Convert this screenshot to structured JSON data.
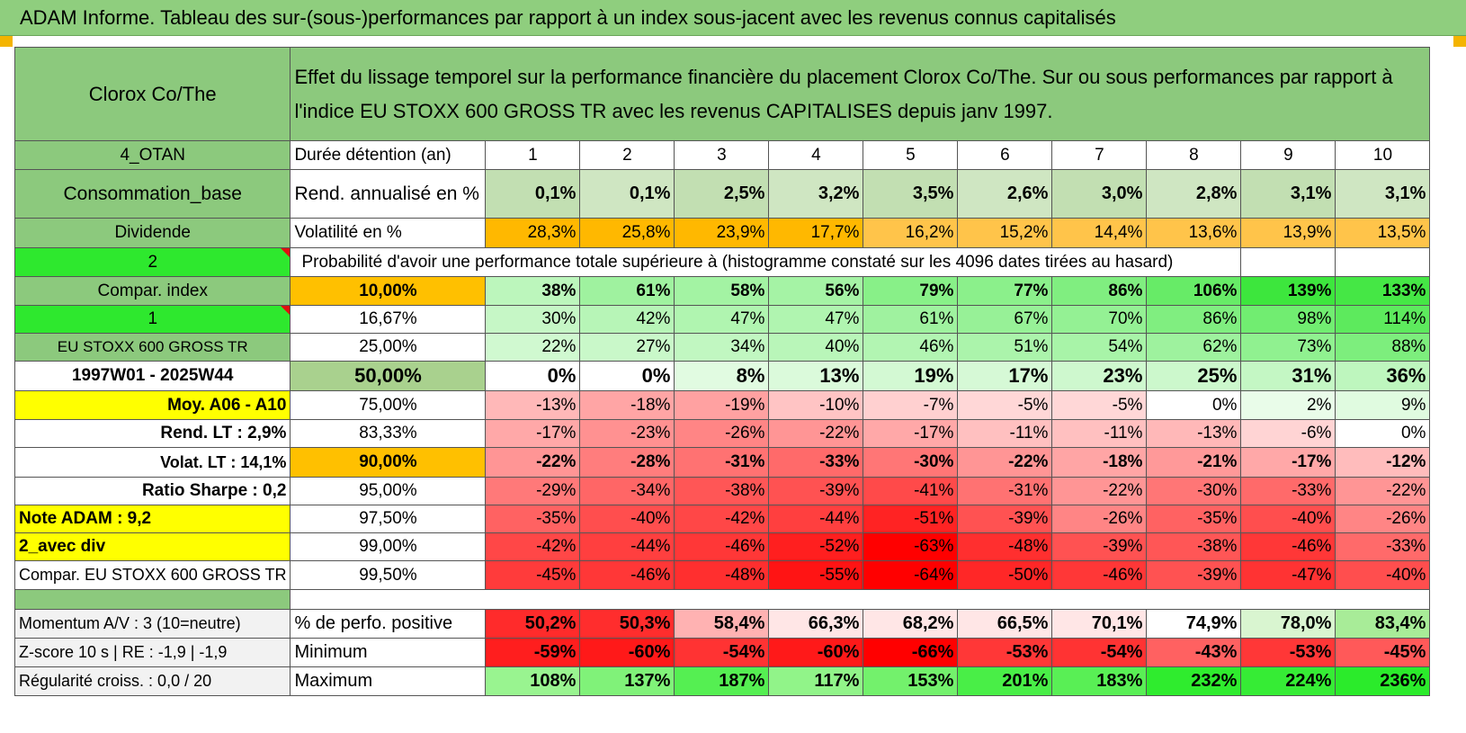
{
  "title": "ADAM Informe. Tableau des sur-(sous-)performances par rapport à un index sous-jacent avec les revenus connus capitalisés",
  "header": {
    "company": "Clorox Co/The",
    "description": "Effet du lissage temporel sur la performance financière du placement Clorox Co/The. Sur ou sous performances par rapport à l'indice EU STOXX 600 GROSS TR avec les revenus CAPITALISES depuis janv 1997."
  },
  "left_labels": [
    "4_OTAN",
    "Consommation_base",
    "Dividende",
    "2",
    "Compar. index",
    "1",
    "EU STOXX 600 GROSS TR",
    "1997W01 - 2025W44",
    "Moy. A06 - A10",
    "Rend. LT :    2,9%",
    "Volat. LT :    14,1%",
    "Ratio Sharpe :     0,2",
    "Note ADAM : 9,2",
    "2_avec div",
    "Compar. EU STOXX 600 GROSS TR"
  ],
  "durations": {
    "label": "Durée détention (an)",
    "values": [
      "1",
      "2",
      "3",
      "4",
      "5",
      "6",
      "7",
      "8",
      "9",
      "10"
    ]
  },
  "rend": {
    "label": "Rend. annualisé en %",
    "values": [
      "0,1%",
      "0,1%",
      "2,5%",
      "3,2%",
      "3,5%",
      "2,6%",
      "3,0%",
      "2,8%",
      "3,1%",
      "3,1%"
    ]
  },
  "vol": {
    "label": "Volatilité en %",
    "values": [
      "28,3%",
      "25,8%",
      "23,9%",
      "17,7%",
      "16,2%",
      "15,2%",
      "14,4%",
      "13,6%",
      "13,9%",
      "13,5%"
    ]
  },
  "prob_title": "Probabilité d'avoir une performance totale supérieure à (histogramme constaté sur les 4096 dates tirées au hasard)",
  "pct_rows": [
    {
      "p": "10,00%",
      "v": [
        "38%",
        "61%",
        "58%",
        "56%",
        "79%",
        "77%",
        "86%",
        "106%",
        "139%",
        "133%"
      ]
    },
    {
      "p": "16,67%",
      "v": [
        "30%",
        "42%",
        "47%",
        "47%",
        "61%",
        "67%",
        "70%",
        "86%",
        "98%",
        "114%"
      ]
    },
    {
      "p": "25,00%",
      "v": [
        "22%",
        "27%",
        "34%",
        "40%",
        "46%",
        "51%",
        "54%",
        "62%",
        "73%",
        "88%"
      ]
    },
    {
      "p": "50,00%",
      "v": [
        "0%",
        "0%",
        "8%",
        "13%",
        "19%",
        "17%",
        "23%",
        "25%",
        "31%",
        "36%"
      ]
    },
    {
      "p": "75,00%",
      "v": [
        "-13%",
        "-18%",
        "-19%",
        "-10%",
        "-7%",
        "-5%",
        "-5%",
        "0%",
        "2%",
        "9%"
      ]
    },
    {
      "p": "83,33%",
      "v": [
        "-17%",
        "-23%",
        "-26%",
        "-22%",
        "-17%",
        "-11%",
        "-11%",
        "-13%",
        "-6%",
        "0%"
      ]
    },
    {
      "p": "90,00%",
      "v": [
        "-22%",
        "-28%",
        "-31%",
        "-33%",
        "-30%",
        "-22%",
        "-18%",
        "-21%",
        "-17%",
        "-12%"
      ]
    },
    {
      "p": "95,00%",
      "v": [
        "-29%",
        "-34%",
        "-38%",
        "-39%",
        "-41%",
        "-31%",
        "-22%",
        "-30%",
        "-33%",
        "-22%"
      ]
    },
    {
      "p": "97,50%",
      "v": [
        "-35%",
        "-40%",
        "-42%",
        "-44%",
        "-51%",
        "-39%",
        "-26%",
        "-35%",
        "-40%",
        "-26%"
      ]
    },
    {
      "p": "99,00%",
      "v": [
        "-42%",
        "-44%",
        "-46%",
        "-52%",
        "-63%",
        "-48%",
        "-39%",
        "-38%",
        "-46%",
        "-33%"
      ]
    },
    {
      "p": "99,50%",
      "v": [
        "-45%",
        "-46%",
        "-48%",
        "-55%",
        "-64%",
        "-50%",
        "-46%",
        "-39%",
        "-47%",
        "-40%"
      ]
    }
  ],
  "bottom": [
    {
      "left": "Momentum A/V : 3 (10=neutre)",
      "label": "% de perfo. positive",
      "v": [
        "50,2%",
        "50,3%",
        "58,4%",
        "66,3%",
        "68,2%",
        "66,5%",
        "70,1%",
        "74,9%",
        "78,0%",
        "83,4%"
      ]
    },
    {
      "left": "Z-score 10 s | RE : -1,9 | -1,9",
      "label": "Minimum",
      "v": [
        "-59%",
        "-60%",
        "-54%",
        "-60%",
        "-66%",
        "-53%",
        "-54%",
        "-43%",
        "-53%",
        "-45%"
      ]
    },
    {
      "left": "Régularité croiss. : 0,0 / 20",
      "label": "Maximum",
      "v": [
        "108%",
        "137%",
        "187%",
        "117%",
        "153%",
        "201%",
        "183%",
        "232%",
        "224%",
        "236%"
      ]
    }
  ],
  "colors": {
    "header_green": "#8cc97d",
    "bright_green": "#2ee82e",
    "yellow": "#ffff00",
    "orange": "#ffc000",
    "label_red": "#e01010"
  }
}
